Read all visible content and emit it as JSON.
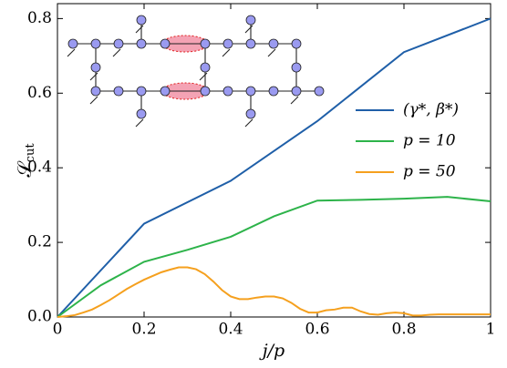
{
  "chart_data": {
    "type": "line",
    "xlabel": "j/p",
    "ylabel": "𝒮",
    "ylabel_sub": "cut",
    "xlim": [
      0,
      1
    ],
    "ylim": [
      0,
      0.84
    ],
    "xticks": [
      0,
      0.2,
      0.4,
      0.6,
      0.8,
      1
    ],
    "yticks": [
      {
        "value": 0,
        "label": "0.0"
      },
      0.2,
      0.4,
      0.6,
      0.8
    ],
    "legend": "right",
    "series": [
      {
        "name": "(γ*, β*)",
        "color": "#1f5fa8",
        "x": [
          0,
          0.2,
          0.4,
          0.6,
          0.8,
          1
        ],
        "values": [
          0,
          0.25,
          0.365,
          0.525,
          0.71,
          0.8
        ]
      },
      {
        "name": "p = 10",
        "color": "#2db34a",
        "x": [
          0,
          0.1,
          0.2,
          0.3,
          0.4,
          0.5,
          0.6,
          0.7,
          0.8,
          0.9,
          1
        ],
        "values": [
          0,
          0.085,
          0.148,
          0.18,
          0.215,
          0.27,
          0.312,
          0.314,
          0.317,
          0.322,
          0.31
        ]
      },
      {
        "name": "p = 50",
        "color": "#f5a01e",
        "x": [
          0,
          0.02,
          0.04,
          0.06,
          0.08,
          0.1,
          0.12,
          0.14,
          0.16,
          0.18,
          0.2,
          0.22,
          0.24,
          0.26,
          0.28,
          0.3,
          0.32,
          0.34,
          0.36,
          0.38,
          0.4,
          0.42,
          0.44,
          0.46,
          0.48,
          0.5,
          0.52,
          0.54,
          0.56,
          0.58,
          0.6,
          0.62,
          0.64,
          0.66,
          0.68,
          0.7,
          0.72,
          0.74,
          0.76,
          0.78,
          0.8,
          0.82,
          0.84,
          0.86,
          0.88,
          0.9,
          0.92,
          0.94,
          0.96,
          0.98,
          1
        ],
        "values": [
          0,
          0.002,
          0.005,
          0.012,
          0.02,
          0.032,
          0.045,
          0.06,
          0.075,
          0.088,
          0.1,
          0.11,
          0.12,
          0.127,
          0.133,
          0.133,
          0.128,
          0.115,
          0.095,
          0.072,
          0.055,
          0.048,
          0.048,
          0.052,
          0.055,
          0.055,
          0.05,
          0.038,
          0.022,
          0.012,
          0.012,
          0.018,
          0.02,
          0.025,
          0.025,
          0.015,
          0.008,
          0.006,
          0.01,
          0.012,
          0.01,
          0.004,
          0.004,
          0.006,
          0.007,
          0.007,
          0.007,
          0.007,
          0.007,
          0.007,
          0.007
        ]
      }
    ]
  }
}
